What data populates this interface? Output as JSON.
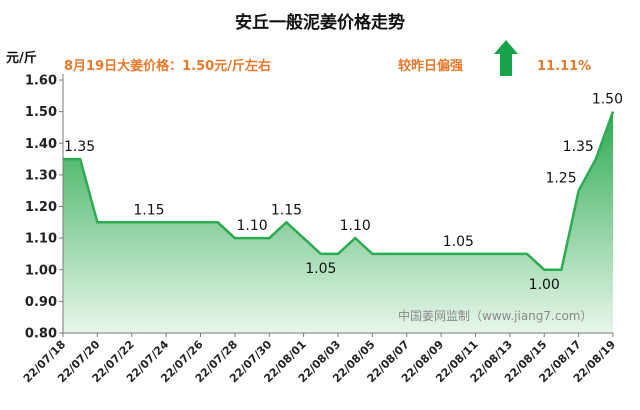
{
  "header": {
    "title": "安丘一般泥姜价格走势",
    "price_note": "8月19日大姜价格：1.50元/斤左右",
    "compare_label": "较昨日偏强",
    "change_percent": "11.11%",
    "trend_icon": "up-arrow-icon",
    "trend_color": "#17a34a"
  },
  "watermark": "中国姜网监制（www.jiang7.com）",
  "chart_data": {
    "type": "area",
    "ylabel": "元/斤",
    "ylim": [
      0.8,
      1.6
    ],
    "yticks": [
      "0.80",
      "0.90",
      "1.00",
      "1.10",
      "1.20",
      "1.30",
      "1.40",
      "1.50",
      "1.60"
    ],
    "x": [
      "22/07/18",
      "22/07/19",
      "22/07/20",
      "22/07/21",
      "22/07/22",
      "22/07/23",
      "22/07/24",
      "22/07/25",
      "22/07/26",
      "22/07/27",
      "22/07/28",
      "22/07/29",
      "22/07/30",
      "22/07/31",
      "22/08/01",
      "22/08/02",
      "22/08/03",
      "22/08/04",
      "22/08/05",
      "22/08/06",
      "22/08/07",
      "22/08/08",
      "22/08/09",
      "22/08/10",
      "22/08/11",
      "22/08/12",
      "22/08/13",
      "22/08/14",
      "22/08/15",
      "22/08/16",
      "22/08/17",
      "22/08/18",
      "22/08/19"
    ],
    "xtick_labels": [
      "22/07/18",
      "22/07/20",
      "22/07/22",
      "22/07/24",
      "22/07/26",
      "22/07/28",
      "22/07/30",
      "22/08/01",
      "22/08/03",
      "22/08/05",
      "22/08/07",
      "22/08/09",
      "22/08/11",
      "22/08/13",
      "22/08/15",
      "22/08/17",
      "22/08/19"
    ],
    "values": [
      1.35,
      1.35,
      1.15,
      1.15,
      1.15,
      1.15,
      1.15,
      1.15,
      1.15,
      1.15,
      1.1,
      1.1,
      1.1,
      1.15,
      1.1,
      1.05,
      1.05,
      1.1,
      1.05,
      1.05,
      1.05,
      1.05,
      1.05,
      1.05,
      1.05,
      1.05,
      1.05,
      1.05,
      1.0,
      1.0,
      1.25,
      1.35,
      1.5
    ],
    "data_labels": [
      {
        "x": "22/07/18",
        "text": "1.35"
      },
      {
        "x": "22/07/23",
        "text": "1.15"
      },
      {
        "x": "22/07/29",
        "text": "1.10"
      },
      {
        "x": "22/07/31",
        "text": "1.15"
      },
      {
        "x": "22/08/02",
        "text": "1.05"
      },
      {
        "x": "22/08/04",
        "text": "1.10"
      },
      {
        "x": "22/08/10",
        "text": "1.05"
      },
      {
        "x": "22/08/15",
        "text": "1.00"
      },
      {
        "x": "22/08/17",
        "text": "1.25"
      },
      {
        "x": "22/08/18",
        "text": "1.35"
      },
      {
        "x": "22/08/19",
        "text": "1.50"
      }
    ],
    "colors": {
      "line": "#2eaa52",
      "fill_top": "#2eaa52",
      "fill_bottom": "#e8f6ea"
    },
    "grid": false
  }
}
